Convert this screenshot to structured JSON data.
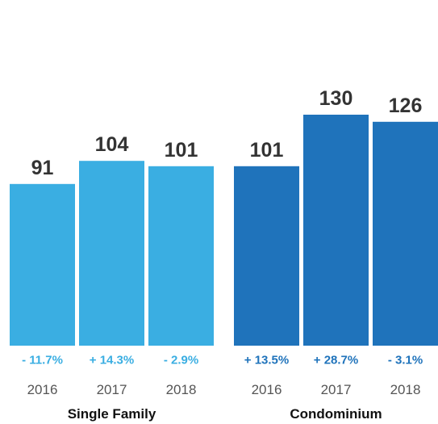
{
  "chart_data": {
    "type": "bar",
    "groups": [
      {
        "name": "Single Family",
        "color": "#3aaee2",
        "bars": [
          {
            "year": "2016",
            "value": 91,
            "label": "91",
            "change": "- 11.7%"
          },
          {
            "year": "2017",
            "value": 104,
            "label": "104",
            "change": "+ 14.3%"
          },
          {
            "year": "2018",
            "value": 101,
            "label": "101",
            "change": "- 2.9%"
          }
        ]
      },
      {
        "name": "Condominium",
        "color": "#1f73bb",
        "bars": [
          {
            "year": "2016",
            "value": 101,
            "label": "101",
            "change": "+ 13.5%"
          },
          {
            "year": "2017",
            "value": 130,
            "label": "130",
            "change": "+ 28.7%"
          },
          {
            "year": "2018",
            "value": 126,
            "label": "126",
            "change": "- 3.1%"
          }
        ]
      }
    ],
    "ylim": [
      0,
      140
    ],
    "grid": false
  }
}
